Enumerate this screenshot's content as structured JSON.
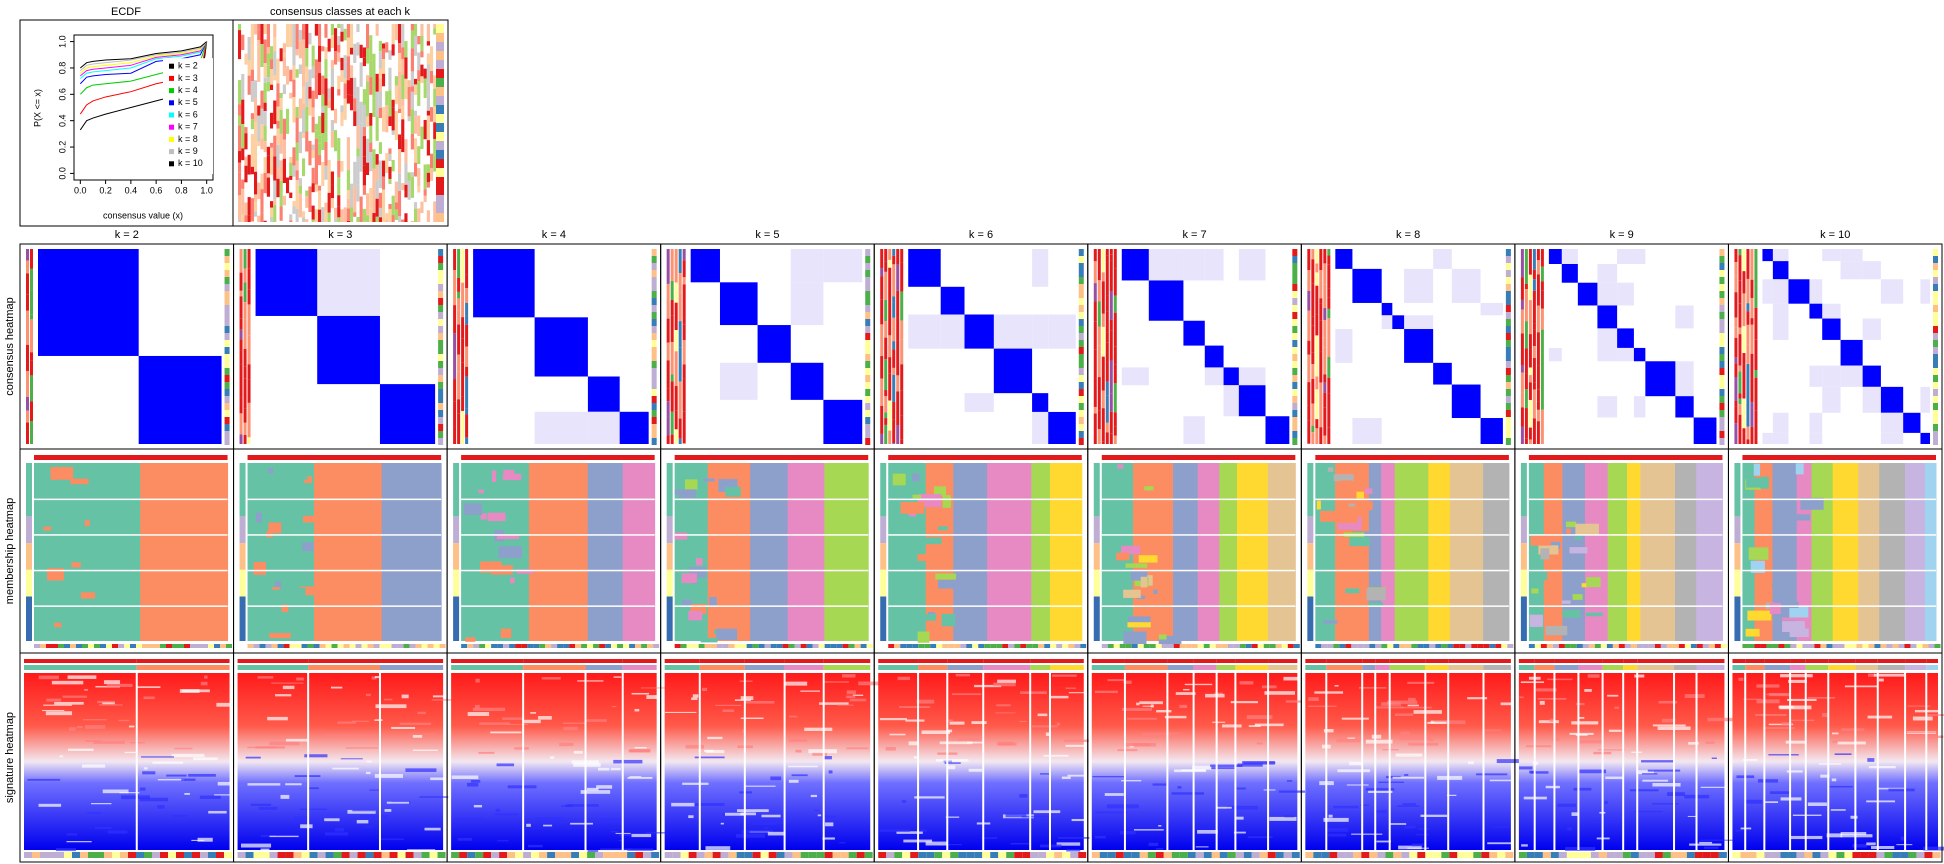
{
  "chart_data": [
    {
      "type": "line",
      "title": "ECDF",
      "x_label": "consensus value (x)",
      "y_label": "P(X <= x)",
      "x": [
        0,
        0.05,
        0.1,
        0.2,
        0.4,
        0.6,
        0.8,
        0.95,
        1
      ],
      "xlim": [
        -0.05,
        1.05
      ],
      "ylim": [
        -0.05,
        1.05
      ],
      "xticks": [
        {
          "value": 0,
          "label": "0.0"
        },
        {
          "value": 0.2,
          "label": "0.2"
        },
        {
          "value": 0.4,
          "label": "0.4"
        },
        {
          "value": 0.6,
          "label": "0.6"
        },
        {
          "value": 0.8,
          "label": "0.8"
        },
        {
          "value": 1,
          "label": "1.0"
        }
      ],
      "yticks": [
        {
          "value": 0,
          "label": "0.0"
        },
        {
          "value": 0.2,
          "label": "0.2"
        },
        {
          "value": 0.4,
          "label": "0.4"
        },
        {
          "value": 0.6,
          "label": "0.6"
        },
        {
          "value": 0.8,
          "label": "0.8"
        },
        {
          "value": 1,
          "label": "1.0"
        }
      ],
      "legend_position": "bottom-right",
      "series": [
        {
          "name": "k = 2",
          "color": "#000000",
          "values": [
            0.33,
            0.4,
            0.42,
            0.45,
            0.5,
            0.55,
            0.6,
            0.63,
            1
          ]
        },
        {
          "name": "k = 3",
          "color": "#FF0000",
          "values": [
            0.45,
            0.52,
            0.55,
            0.58,
            0.62,
            0.68,
            0.72,
            0.75,
            1
          ]
        },
        {
          "name": "k = 4",
          "color": "#00CD00",
          "values": [
            0.6,
            0.65,
            0.67,
            0.68,
            0.7,
            0.75,
            0.8,
            0.85,
            1
          ]
        },
        {
          "name": "k = 5",
          "color": "#0000FF",
          "values": [
            0.68,
            0.73,
            0.74,
            0.75,
            0.76,
            0.85,
            0.87,
            0.9,
            1
          ]
        },
        {
          "name": "k = 6",
          "color": "#00FFFF",
          "values": [
            0.72,
            0.76,
            0.77,
            0.78,
            0.8,
            0.87,
            0.89,
            0.92,
            1
          ]
        },
        {
          "name": "k = 7",
          "color": "#FF00FF",
          "values": [
            0.74,
            0.78,
            0.79,
            0.8,
            0.82,
            0.88,
            0.9,
            0.93,
            1
          ]
        },
        {
          "name": "k = 8",
          "color": "#FFFF00",
          "values": [
            0.76,
            0.8,
            0.81,
            0.82,
            0.84,
            0.89,
            0.91,
            0.94,
            1
          ]
        },
        {
          "name": "k = 9",
          "color": "#BEBEBE",
          "values": [
            0.78,
            0.82,
            0.83,
            0.84,
            0.86,
            0.9,
            0.92,
            0.95,
            1
          ]
        },
        {
          "name": "k = 10",
          "color": "#000000",
          "values": [
            0.8,
            0.84,
            0.85,
            0.86,
            0.87,
            0.91,
            0.93,
            0.96,
            1
          ]
        }
      ]
    },
    {
      "type": "heatmap",
      "title": "consensus classes at each k"
    }
  ],
  "panels": {
    "columns": [
      "k = 2",
      "k = 3",
      "k = 4",
      "k = 5",
      "k = 6",
      "k = 7",
      "k = 8",
      "k = 9",
      "k = 10"
    ],
    "rows": [
      "consensus heatmap",
      "membership heatmap",
      "signature heatmap"
    ]
  }
}
